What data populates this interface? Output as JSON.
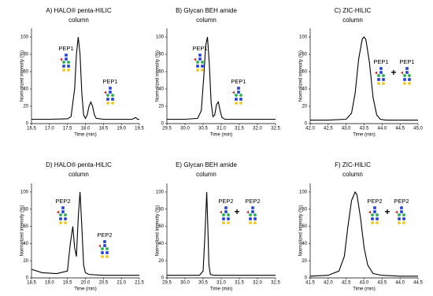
{
  "chart_data": [
    {
      "type": "line",
      "title": [
        "A) HALO® penta-HILIC",
        "column"
      ],
      "x_label": "Time (min)",
      "y_label": "Normalized intensity (%)",
      "color": "#000000",
      "x": [
        16.5,
        17.0,
        17.5,
        17.6,
        17.7,
        17.75,
        17.8,
        17.85,
        17.9,
        17.95,
        18.0,
        18.05,
        18.1,
        18.15,
        18.2,
        18.25,
        18.3,
        18.5,
        19.0,
        19.3,
        19.4,
        19.45,
        19.5
      ],
      "values": [
        5,
        5,
        5.5,
        8,
        40,
        80,
        100,
        80,
        35,
        10,
        6,
        10,
        20,
        25,
        20,
        10,
        6,
        5,
        5,
        5,
        7,
        5,
        5
      ],
      "xlim": [
        16.5,
        19.5
      ],
      "xticks": [
        16.5,
        {
          "value": 17,
          "label": "17.0"
        },
        17.5,
        {
          "value": 18,
          "label": "18.0"
        },
        18.5,
        {
          "value": 19,
          "label": "19.0"
        },
        19.5
      ],
      "ylim": [
        0,
        110
      ],
      "yticks": [
        0,
        20,
        40,
        60,
        80,
        100
      ],
      "annotations": [
        "PEP1",
        "PEP1"
      ]
    },
    {
      "type": "line",
      "title": [
        "B) Glycan BEH amide",
        "column"
      ],
      "x_label": "Time (min)",
      "y_label": "Normalized intensity (%)",
      "color": "#000000",
      "x": [
        29.5,
        30.0,
        30.35,
        30.45,
        30.52,
        30.57,
        30.62,
        30.67,
        30.72,
        30.77,
        30.82,
        30.87,
        30.92,
        30.97,
        31.02,
        31.1,
        31.5,
        32.0,
        32.5
      ],
      "values": [
        5,
        5,
        6,
        15,
        55,
        90,
        100,
        70,
        25,
        8,
        10,
        22,
        25,
        15,
        7,
        5,
        5,
        5,
        5
      ],
      "xlim": [
        29.5,
        32.5
      ],
      "xticks": [
        29.5,
        {
          "value": 30,
          "label": "30.0"
        },
        30.5,
        {
          "value": 31,
          "label": "31.0"
        },
        31.5,
        {
          "value": 32,
          "label": "32.0"
        },
        32.5
      ],
      "ylim": [
        0,
        110
      ],
      "yticks": [
        0,
        20,
        40,
        60,
        80,
        100
      ],
      "annotations": [
        "PEP1",
        "PEP1"
      ]
    },
    {
      "type": "line",
      "title": [
        "C) ZIC-HILIC",
        "column"
      ],
      "x_label": "Time (min)",
      "y_label": "Normalized intensity (%)",
      "color": "#000000",
      "x": [
        42.0,
        42.5,
        43.0,
        43.15,
        43.25,
        43.35,
        43.45,
        43.5,
        43.55,
        43.65,
        43.75,
        43.85,
        43.95,
        44.1,
        44.5,
        45.0
      ],
      "values": [
        4,
        4,
        5,
        12,
        35,
        75,
        98,
        100,
        97,
        70,
        30,
        10,
        5,
        4,
        4,
        4
      ],
      "xlim": [
        42.0,
        45.0
      ],
      "xticks": [
        {
          "value": 42,
          "label": "42.0"
        },
        42.5,
        {
          "value": 43,
          "label": "43.0"
        },
        43.5,
        {
          "value": 44,
          "label": "44.0"
        },
        44.5,
        {
          "value": 45,
          "label": "45.0"
        }
      ],
      "ylim": [
        0,
        110
      ],
      "yticks": [
        0,
        20,
        40,
        60,
        80,
        100
      ],
      "annotations": [
        "PEP1",
        "+",
        "PEP1"
      ]
    },
    {
      "type": "line",
      "title": [
        "D) HALO® penta-HILIC",
        "column"
      ],
      "x_label": "Time (min)",
      "y_label": "Normalized intensity (%)",
      "color": "#000000",
      "x": [
        18.5,
        18.8,
        19.2,
        19.5,
        19.58,
        19.65,
        19.7,
        19.75,
        19.8,
        19.85,
        19.9,
        19.95,
        20.0,
        20.1,
        20.5,
        21.0,
        21.5
      ],
      "values": [
        10,
        6,
        5,
        8,
        40,
        60,
        35,
        25,
        70,
        100,
        60,
        15,
        6,
        4,
        3,
        3,
        3
      ],
      "xlim": [
        18.5,
        21.5
      ],
      "xticks": [
        18.5,
        {
          "value": 19,
          "label": "19.0"
        },
        19.5,
        {
          "value": 20,
          "label": "20.0"
        },
        20.5,
        {
          "value": 21,
          "label": "21.0"
        },
        21.5
      ],
      "ylim": [
        0,
        110
      ],
      "yticks": [
        0,
        20,
        40,
        60,
        80,
        100
      ],
      "annotations": [
        "PEP2",
        "PEP2"
      ]
    },
    {
      "type": "line",
      "title": [
        "E) Glycan BEH amide",
        "column"
      ],
      "x_label": "Time (min)",
      "y_label": "Normalized intensity (%)",
      "color": "#000000",
      "x": [
        29.5,
        30.0,
        30.4,
        30.5,
        30.55,
        30.6,
        30.63,
        30.66,
        30.7,
        30.8,
        31.5,
        32.0,
        32.5
      ],
      "values": [
        3,
        3,
        3,
        8,
        50,
        100,
        60,
        15,
        4,
        3,
        3,
        3,
        3
      ],
      "xlim": [
        29.5,
        32.5
      ],
      "xticks": [
        29.5,
        {
          "value": 30,
          "label": "30.0"
        },
        30.5,
        {
          "value": 31,
          "label": "31.0"
        },
        31.5,
        {
          "value": 32,
          "label": "32.0"
        },
        32.5
      ],
      "ylim": [
        0,
        110
      ],
      "yticks": [
        0,
        20,
        40,
        60,
        80,
        100
      ],
      "annotations": [
        "PEP2",
        "+",
        "PEP2"
      ]
    },
    {
      "type": "line",
      "title": [
        "F) ZIC-HILIC",
        "column"
      ],
      "x_label": "Time (min)",
      "y_label": "Normalized intensity (%)",
      "color": "#000000",
      "x": [
        41.5,
        42.0,
        42.3,
        42.45,
        42.55,
        42.65,
        42.75,
        42.8,
        42.9,
        43.0,
        43.1,
        43.25,
        43.5,
        44.0,
        44.5
      ],
      "values": [
        2,
        3,
        8,
        25,
        60,
        90,
        100,
        97,
        70,
        35,
        15,
        5,
        3,
        2,
        2
      ],
      "xlim": [
        41.5,
        44.5
      ],
      "xticks": [
        41.5,
        {
          "value": 42,
          "label": "42.0"
        },
        42.5,
        {
          "value": 43,
          "label": "43.0"
        },
        43.5,
        {
          "value": 44,
          "label": "44.0"
        },
        44.5
      ],
      "ylim": [
        0,
        110
      ],
      "yticks": [
        0,
        20,
        40,
        60,
        80,
        100
      ],
      "annotations": [
        "PEP2",
        "+",
        "PEP2"
      ]
    }
  ]
}
